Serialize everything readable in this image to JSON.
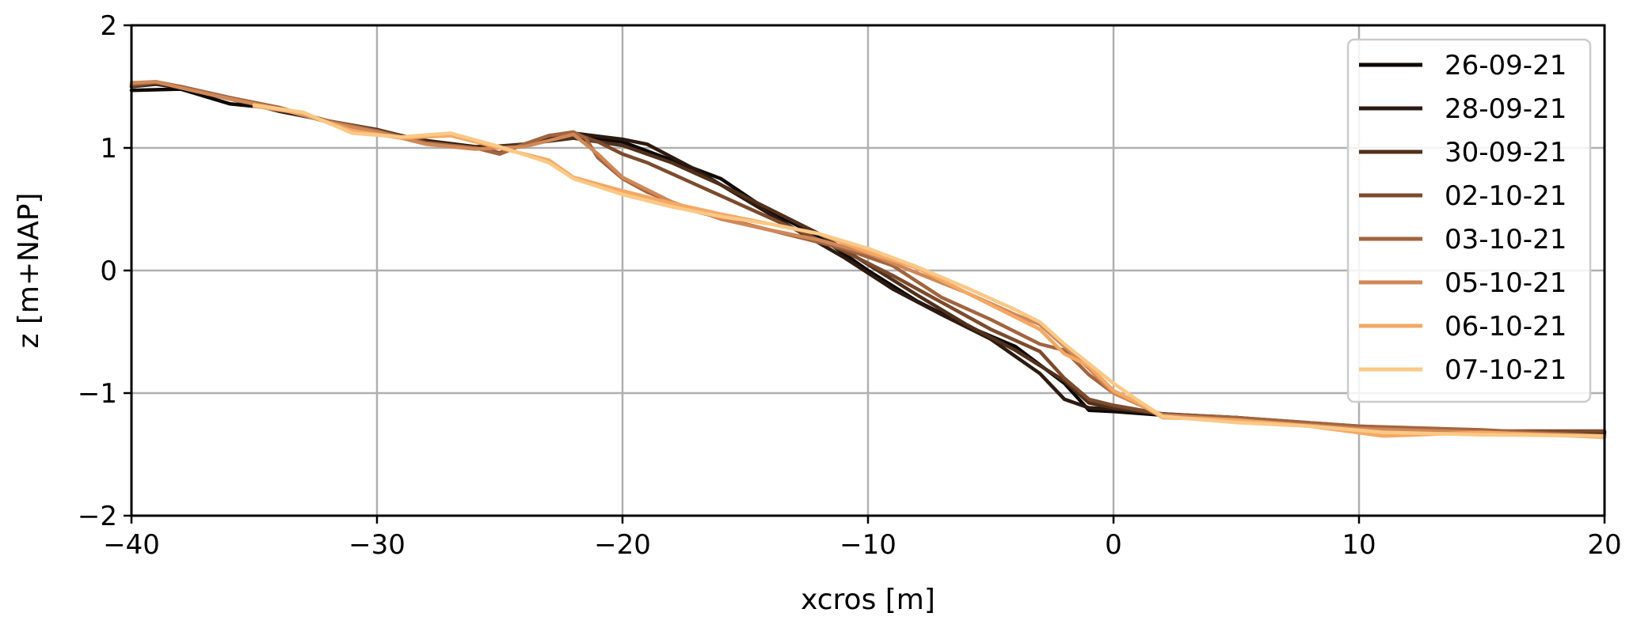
{
  "chart_data": {
    "type": "line",
    "xlabel": "xcros [m]",
    "ylabel": "z [m+NAP]",
    "xlim": [
      -40,
      20
    ],
    "ylim": [
      -2,
      2
    ],
    "xticks": [
      -40,
      -30,
      -20,
      -10,
      0,
      10,
      20
    ],
    "xtick_labels": [
      "−40",
      "−30",
      "−20",
      "−10",
      "0",
      "10",
      "20"
    ],
    "yticks": [
      -2,
      -1,
      0,
      1,
      2
    ],
    "ytick_labels": [
      "−2",
      "−1",
      "0",
      "1",
      "2"
    ],
    "grid": true,
    "legend_position": "top-right",
    "series": [
      {
        "name": "26-09-21",
        "color": "#0d0805",
        "x": [
          -40,
          -38,
          -36,
          -34,
          -32,
          -30,
          -28,
          -26,
          -24,
          -22,
          -20,
          -18,
          -16,
          -14,
          -12,
          -10,
          -8,
          -6,
          -4,
          -2,
          -1,
          0,
          2,
          5,
          10,
          15,
          20
        ],
        "y": [
          1.47,
          1.48,
          1.36,
          1.32,
          1.22,
          1.14,
          1.05,
          1.0,
          1.02,
          1.1,
          1.05,
          0.9,
          0.75,
          0.48,
          0.28,
          0.0,
          -0.25,
          -0.45,
          -0.62,
          -0.92,
          -1.14,
          -1.15,
          -1.18,
          -1.2,
          -1.28,
          -1.33,
          -1.35
        ]
      },
      {
        "name": "28-09-21",
        "color": "#2c1a10",
        "x": [
          -40,
          -39,
          -38,
          -36,
          -34,
          -32,
          -30,
          -28,
          -26,
          -24,
          -22,
          -20,
          -19,
          -17,
          -15,
          -13,
          -11,
          -9,
          -7,
          -5,
          -3,
          -2,
          -1,
          0,
          2,
          5,
          10,
          15,
          20
        ],
        "y": [
          1.5,
          1.52,
          1.49,
          1.4,
          1.3,
          1.22,
          1.14,
          1.06,
          1.01,
          1.02,
          1.12,
          1.07,
          1.03,
          0.82,
          0.58,
          0.34,
          0.11,
          -0.15,
          -0.36,
          -0.56,
          -0.84,
          -1.05,
          -1.12,
          -1.13,
          -1.17,
          -1.2,
          -1.28,
          -1.32,
          -1.32
        ]
      },
      {
        "name": "30-09-21",
        "color": "#50301c",
        "x": [
          -40,
          -39,
          -38,
          -36,
          -34,
          -32,
          -30,
          -28,
          -26,
          -24,
          -22,
          -20,
          -18,
          -16,
          -14,
          -12,
          -10,
          -8,
          -6,
          -4,
          -2,
          -1,
          0,
          2,
          5,
          10,
          15,
          20
        ],
        "y": [
          1.5,
          1.53,
          1.5,
          1.4,
          1.33,
          1.22,
          1.15,
          1.05,
          1.0,
          1.03,
          1.08,
          1.02,
          0.88,
          0.7,
          0.5,
          0.3,
          0.05,
          -0.2,
          -0.44,
          -0.65,
          -0.9,
          -1.08,
          -1.12,
          -1.17,
          -1.21,
          -1.28,
          -1.32,
          -1.33
        ]
      },
      {
        "name": "02-10-21",
        "color": "#7c4b2d",
        "x": [
          -40,
          -39,
          -38,
          -36,
          -34,
          -32,
          -30,
          -28,
          -26,
          -25,
          -24,
          -23,
          -22,
          -21,
          -20,
          -19,
          -17,
          -15,
          -13,
          -11,
          -9,
          -7,
          -5,
          -3,
          -2,
          -1,
          0,
          2,
          5,
          10,
          15,
          20
        ],
        "y": [
          1.51,
          1.53,
          1.5,
          1.41,
          1.33,
          1.22,
          1.14,
          1.04,
          1.0,
          0.96,
          1.03,
          1.1,
          1.12,
          1.05,
          0.95,
          0.88,
          0.7,
          0.52,
          0.34,
          0.16,
          -0.04,
          -0.26,
          -0.48,
          -0.66,
          -0.88,
          -1.05,
          -1.1,
          -1.17,
          -1.2,
          -1.27,
          -1.31,
          -1.31
        ]
      },
      {
        "name": "03-10-21",
        "color": "#a2653f",
        "x": [
          -40,
          -39,
          -38,
          -36,
          -34,
          -32,
          -30,
          -28,
          -26,
          -25,
          -24,
          -23,
          -22,
          -21.5,
          -21,
          -20,
          -19,
          -17,
          -15,
          -13,
          -11,
          -9,
          -7,
          -5,
          -3,
          -2,
          -1,
          0,
          2,
          5,
          10,
          15,
          20
        ],
        "y": [
          1.52,
          1.54,
          1.5,
          1.41,
          1.33,
          1.22,
          1.14,
          1.04,
          1.0,
          0.95,
          1.03,
          1.1,
          1.13,
          1.08,
          0.92,
          0.75,
          0.64,
          0.48,
          0.38,
          0.28,
          0.18,
          0.04,
          -0.22,
          -0.4,
          -0.6,
          -0.65,
          -0.85,
          -1.0,
          -1.18,
          -1.2,
          -1.27,
          -1.3,
          -1.35
        ]
      },
      {
        "name": "05-10-21",
        "color": "#d08858",
        "x": [
          -40,
          -39,
          -38,
          -36,
          -34,
          -32,
          -30,
          -28,
          -26,
          -24,
          -22,
          -21,
          -20,
          -18,
          -16,
          -14,
          -12,
          -10,
          -8,
          -6,
          -4,
          -3,
          -2,
          -1,
          0,
          2,
          5,
          10,
          15,
          20
        ],
        "y": [
          1.53,
          1.54,
          1.49,
          1.4,
          1.32,
          1.21,
          1.13,
          1.03,
          0.99,
          1.01,
          1.11,
          0.95,
          0.76,
          0.56,
          0.42,
          0.33,
          0.25,
          0.14,
          -0.02,
          -0.18,
          -0.36,
          -0.44,
          -0.62,
          -0.8,
          -1.0,
          -1.18,
          -1.22,
          -1.29,
          -1.32,
          -1.35
        ]
      },
      {
        "name": "06-10-21",
        "color": "#f4a864",
        "x": [
          -35,
          -33,
          -31,
          -29,
          -27,
          -25,
          -23,
          -22,
          -20,
          -18,
          -16,
          -14,
          -12,
          -10,
          -8,
          -6,
          -4,
          -3,
          -2,
          -1,
          0,
          1,
          2,
          5,
          8,
          11,
          15,
          20
        ],
        "y": [
          1.34,
          1.28,
          1.14,
          1.08,
          1.1,
          1.0,
          0.9,
          0.76,
          0.65,
          0.55,
          0.46,
          0.38,
          0.3,
          0.15,
          0.02,
          -0.18,
          -0.38,
          -0.48,
          -0.68,
          -0.78,
          -0.98,
          -1.08,
          -1.2,
          -1.22,
          -1.27,
          -1.35,
          -1.32,
          -1.36
        ]
      },
      {
        "name": "07-10-21",
        "color": "#fbc886",
        "x": [
          -35,
          -33,
          -31,
          -29,
          -27,
          -25,
          -23,
          -22,
          -20,
          -18,
          -16,
          -14,
          -12,
          -10,
          -8,
          -6,
          -4,
          -3,
          -2,
          -1,
          0,
          1,
          2,
          5,
          8,
          11,
          15,
          20
        ],
        "y": [
          1.35,
          1.29,
          1.12,
          1.09,
          1.12,
          1.01,
          0.88,
          0.75,
          0.62,
          0.52,
          0.44,
          0.38,
          0.3,
          0.18,
          0.03,
          -0.14,
          -0.32,
          -0.42,
          -0.6,
          -0.76,
          -0.92,
          -1.06,
          -1.19,
          -1.24,
          -1.27,
          -1.32,
          -1.34,
          -1.35
        ]
      }
    ]
  }
}
